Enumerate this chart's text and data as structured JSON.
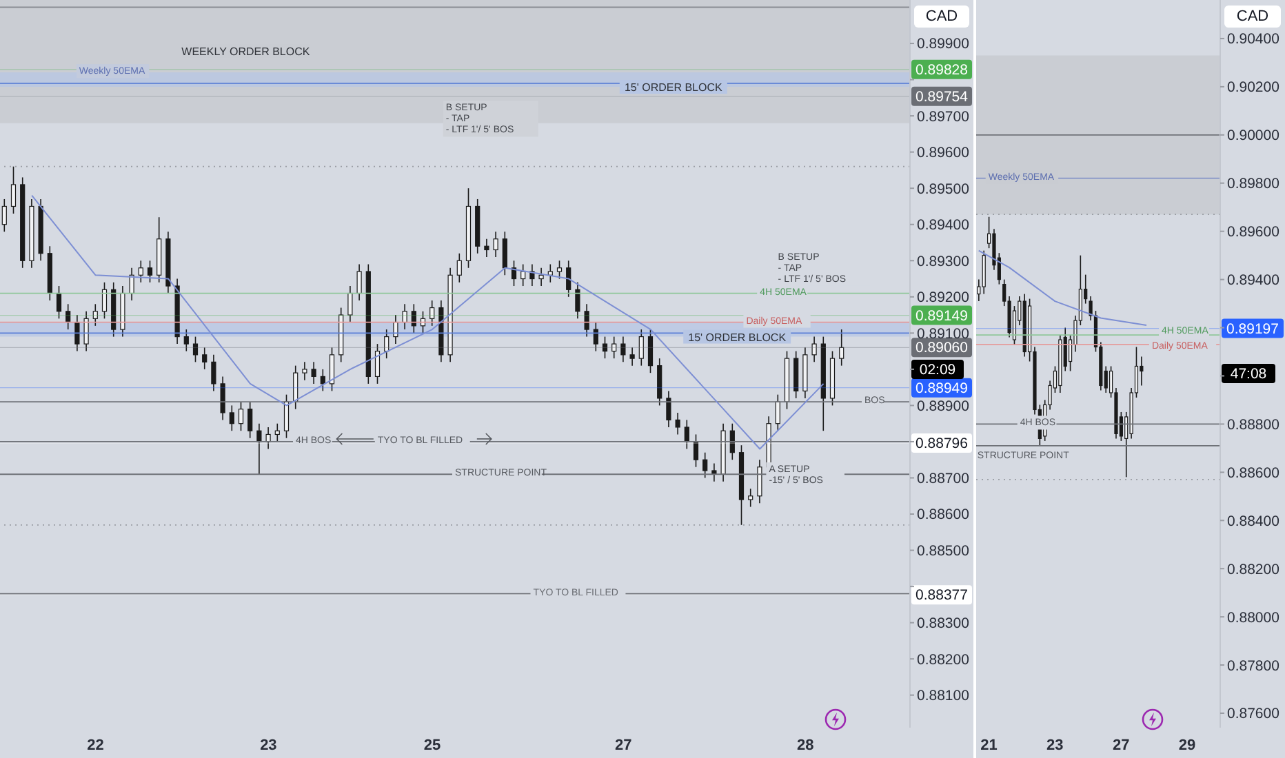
{
  "chart_data": [
    {
      "type": "candlestick",
      "color": "#1a1a1a",
      "ylabel": "CAD",
      "categories": [
        null,
        null,
        null,
        null,
        null,
        null,
        null,
        null,
        null,
        null,
        "22",
        null,
        null,
        null,
        null,
        null,
        null,
        null,
        null,
        null,
        null,
        null,
        null,
        null,
        null,
        null,
        null,
        null,
        null,
        "23",
        null,
        null,
        null,
        null,
        null,
        null,
        null,
        null,
        null,
        null,
        null,
        null,
        null,
        null,
        null,
        null,
        null,
        "25",
        null,
        null,
        null,
        null,
        null,
        null,
        null,
        null,
        null,
        null,
        null,
        null,
        null,
        null,
        null,
        null,
        null,
        null,
        null,
        null,
        "27",
        null,
        null,
        null,
        null,
        null,
        null,
        null,
        null,
        null,
        null,
        null,
        null,
        null,
        null,
        null,
        null,
        null,
        null,
        null,
        "28",
        null,
        null,
        null,
        null,
        null,
        null,
        null,
        null,
        null,
        null,
        null
      ],
      "ohlc": [
        [
          0.894,
          0.8947,
          0.8938,
          0.8945
        ],
        [
          0.8945,
          0.8956,
          0.8943,
          0.8951
        ],
        [
          0.8951,
          0.8953,
          0.8928,
          0.893
        ],
        [
          0.893,
          0.8947,
          0.8928,
          0.8945
        ],
        [
          0.8945,
          0.8947,
          0.893,
          0.8932
        ],
        [
          0.8932,
          0.8934,
          0.8919,
          0.8921
        ],
        [
          0.8921,
          0.8923,
          0.8914,
          0.8916
        ],
        [
          0.8916,
          0.8918,
          0.8911,
          0.8913
        ],
        [
          0.8913,
          0.8915,
          0.8905,
          0.8907
        ],
        [
          0.8907,
          0.8916,
          0.8905,
          0.8914
        ],
        [
          0.8914,
          0.8918,
          0.8912,
          0.8916
        ],
        [
          0.8916,
          0.8924,
          0.8914,
          0.8922
        ],
        [
          0.8922,
          0.8924,
          0.8909,
          0.8911
        ],
        [
          0.8911,
          0.8923,
          0.8909,
          0.8921
        ],
        [
          0.8921,
          0.8928,
          0.8919,
          0.8926
        ],
        [
          0.8926,
          0.893,
          0.8924,
          0.8928
        ],
        [
          0.8928,
          0.893,
          0.8924,
          0.8926
        ],
        [
          0.8926,
          0.8942,
          0.8924,
          0.8936
        ],
        [
          0.8936,
          0.8938,
          0.8921,
          0.8923
        ],
        [
          0.8923,
          0.8925,
          0.8907,
          0.8909
        ],
        [
          0.8909,
          0.8911,
          0.8905,
          0.8907
        ],
        [
          0.8907,
          0.8909,
          0.8902,
          0.8904
        ],
        [
          0.8904,
          0.8906,
          0.89,
          0.8902
        ],
        [
          0.8902,
          0.8904,
          0.8894,
          0.8896
        ],
        [
          0.8896,
          0.8898,
          0.8886,
          0.8888
        ],
        [
          0.8888,
          0.889,
          0.8883,
          0.8885
        ],
        [
          0.8885,
          0.8891,
          0.8883,
          0.8889
        ],
        [
          0.8889,
          0.8891,
          0.8881,
          0.8883
        ],
        [
          0.8883,
          0.8885,
          0.8871,
          0.888
        ],
        [
          0.888,
          0.8884,
          0.8878,
          0.8882
        ],
        [
          0.8882,
          0.8885,
          0.888,
          0.8883
        ],
        [
          0.8883,
          0.8893,
          0.8881,
          0.8891
        ],
        [
          0.8891,
          0.8901,
          0.8889,
          0.8899
        ],
        [
          0.8899,
          0.8902,
          0.8897,
          0.89
        ],
        [
          0.89,
          0.8902,
          0.8896,
          0.8898
        ],
        [
          0.8898,
          0.89,
          0.8894,
          0.8896
        ],
        [
          0.8896,
          0.8906,
          0.8894,
          0.8904
        ],
        [
          0.8904,
          0.8917,
          0.8902,
          0.8915
        ],
        [
          0.8915,
          0.8923,
          0.8913,
          0.8921
        ],
        [
          0.8921,
          0.8929,
          0.8919,
          0.8927
        ],
        [
          0.8927,
          0.8929,
          0.8896,
          0.8898
        ],
        [
          0.8898,
          0.8907,
          0.8896,
          0.8905
        ],
        [
          0.8905,
          0.8911,
          0.8903,
          0.8909
        ],
        [
          0.8909,
          0.8915,
          0.8907,
          0.8913
        ],
        [
          0.8913,
          0.8918,
          0.8911,
          0.8916
        ],
        [
          0.8916,
          0.8918,
          0.891,
          0.8912
        ],
        [
          0.8912,
          0.8916,
          0.891,
          0.8914
        ],
        [
          0.8914,
          0.8919,
          0.8912,
          0.8917
        ],
        [
          0.8917,
          0.8919,
          0.8902,
          0.8904
        ],
        [
          0.8904,
          0.8928,
          0.8902,
          0.8926
        ],
        [
          0.8926,
          0.8932,
          0.8924,
          0.893
        ],
        [
          0.893,
          0.895,
          0.8928,
          0.8945
        ],
        [
          0.8945,
          0.8947,
          0.8932,
          0.8934
        ],
        [
          0.8934,
          0.8936,
          0.8931,
          0.8933
        ],
        [
          0.8933,
          0.8938,
          0.8931,
          0.8936
        ],
        [
          0.8936,
          0.8938,
          0.8926,
          0.8928
        ],
        [
          0.8928,
          0.893,
          0.8923,
          0.8925
        ],
        [
          0.8925,
          0.8929,
          0.8923,
          0.8927
        ],
        [
          0.8927,
          0.8929,
          0.8923,
          0.8925
        ],
        [
          0.8925,
          0.8928,
          0.8923,
          0.8926
        ],
        [
          0.8926,
          0.8929,
          0.8924,
          0.8927
        ],
        [
          0.8927,
          0.893,
          0.8925,
          0.8928
        ],
        [
          0.8928,
          0.893,
          0.892,
          0.8922
        ],
        [
          0.8922,
          0.8924,
          0.8914,
          0.8916
        ],
        [
          0.8916,
          0.8918,
          0.8909,
          0.8911
        ],
        [
          0.8911,
          0.8913,
          0.8905,
          0.8907
        ],
        [
          0.8907,
          0.8909,
          0.8903,
          0.8905
        ],
        [
          0.8905,
          0.8909,
          0.8903,
          0.8907
        ],
        [
          0.8907,
          0.8909,
          0.8902,
          0.8904
        ],
        [
          0.8904,
          0.8906,
          0.8901,
          0.8903
        ],
        [
          0.8903,
          0.8911,
          0.8901,
          0.8909
        ],
        [
          0.8909,
          0.8911,
          0.8899,
          0.8901
        ],
        [
          0.8901,
          0.8903,
          0.889,
          0.8892
        ],
        [
          0.8892,
          0.8894,
          0.8884,
          0.8886
        ],
        [
          0.8886,
          0.8888,
          0.8882,
          0.8884
        ],
        [
          0.8884,
          0.8886,
          0.8878,
          0.888
        ],
        [
          0.888,
          0.8882,
          0.8873,
          0.8875
        ],
        [
          0.8875,
          0.8877,
          0.887,
          0.8872
        ],
        [
          0.8872,
          0.8874,
          0.8869,
          0.8871
        ],
        [
          0.8871,
          0.8885,
          0.8869,
          0.8883
        ],
        [
          0.8883,
          0.8885,
          0.8875,
          0.8877
        ],
        [
          0.8877,
          0.8879,
          0.8857,
          0.8864
        ],
        [
          0.8864,
          0.8867,
          0.8862,
          0.8865
        ],
        [
          0.8865,
          0.8875,
          0.8863,
          0.8873
        ],
        [
          0.8873,
          0.8887,
          0.8871,
          0.8885
        ],
        [
          0.8885,
          0.8893,
          0.8883,
          0.8891
        ],
        [
          0.8891,
          0.8905,
          0.8889,
          0.8903
        ],
        [
          0.8903,
          0.8905,
          0.8892,
          0.8894
        ],
        [
          0.8894,
          0.8906,
          0.8892,
          0.8904
        ],
        [
          0.8904,
          0.8909,
          0.8902,
          0.8907
        ],
        [
          0.8907,
          0.8909,
          0.8883,
          0.8892
        ],
        [
          0.8892,
          0.8905,
          0.889,
          0.8903
        ],
        [
          0.8903,
          0.8911,
          0.8901,
          0.8906
        ],
        null,
        null,
        null,
        null,
        null,
        null,
        null
      ],
      "series": [
        {
          "type": "line",
          "color": "#7d8fd4",
          "values": [
            null,
            null,
            null,
            0.8948,
            null,
            null,
            null,
            null,
            null,
            null,
            0.8926,
            null,
            null,
            null,
            null,
            null,
            null,
            null,
            0.8925,
            null,
            null,
            null,
            null,
            null,
            null,
            null,
            null,
            0.8896,
            null,
            null,
            null,
            0.889,
            null,
            null,
            null,
            null,
            null,
            null,
            0.89,
            null,
            null,
            null,
            null,
            null,
            null,
            null,
            null,
            0.8911,
            null,
            null,
            null,
            null,
            null,
            null,
            null,
            0.8928,
            null,
            null,
            null,
            null,
            null,
            null,
            0.8925,
            null,
            null,
            null,
            null,
            null,
            null,
            null,
            null,
            0.8911,
            null,
            null,
            null,
            null,
            null,
            null,
            null,
            null,
            null,
            null,
            null,
            0.8878,
            null,
            null,
            null,
            null,
            null,
            null,
            0.8896,
            null,
            null,
            null,
            null,
            null,
            null,
            null,
            null,
            null
          ]
        }
      ],
      "ylim": [
        0.8801,
        0.9002
      ],
      "yticks": [
        {
          "value": 0.881,
          "label": "0.88100"
        },
        {
          "value": 0.882,
          "label": "0.88200"
        },
        {
          "value": 0.883,
          "label": "0.88300"
        },
        {
          "value": 0.884,
          "label": null
        },
        {
          "value": 0.885,
          "label": "0.88500"
        },
        {
          "value": 0.886,
          "label": "0.88600"
        },
        {
          "value": 0.887,
          "label": "0.88700"
        },
        {
          "value": 0.888,
          "label": null
        },
        {
          "value": 0.889,
          "label": "0.88900"
        },
        {
          "value": 0.89,
          "label": null
        },
        {
          "value": 0.891,
          "label": "0.89100"
        },
        {
          "value": 0.892,
          "label": "0.89200"
        },
        {
          "value": 0.893,
          "label": "0.89300"
        },
        {
          "value": 0.894,
          "label": "0.89400"
        },
        {
          "value": 0.895,
          "label": "0.89500"
        },
        {
          "value": 0.896,
          "label": "0.89600"
        },
        {
          "value": 0.897,
          "label": "0.89700"
        },
        {
          "value": 0.898,
          "label": null
        },
        {
          "value": 0.899,
          "label": "0.89900"
        }
      ],
      "bands": [
        {
          "axis": "y",
          "from": 0.8968,
          "to": 0.9002,
          "label": "WEEKLY ORDER BLOCK",
          "color": "#c5c8ce"
        },
        {
          "axis": "y",
          "from": 0.8978,
          "to": 0.8982,
          "label": "15' ORDER BLOCK",
          "color": "#b7c6e4"
        },
        {
          "axis": "y",
          "from": 0.8909,
          "to": 0.8913,
          "label": "15' ORDER BLOCK",
          "color": "#b7c6e4"
        }
      ],
      "ref_lines": [
        {
          "axis": "y",
          "value": 0.9,
          "color": "#8a8d94",
          "line_style": "solid"
        },
        {
          "axis": "y",
          "value": 0.8979,
          "color": "#5b7fd6",
          "line_style": "solid"
        },
        {
          "axis": "y",
          "value": 0.8956,
          "color": "#9a9da4",
          "line_style": "dotted"
        },
        {
          "axis": "y",
          "value": 0.8921,
          "color": "#8fc79a",
          "line_style": "solid"
        },
        {
          "axis": "y",
          "value": 0.8913,
          "color": "#e59a9a",
          "line_style": "solid"
        },
        {
          "axis": "y",
          "value": 0.891,
          "color": "#5b7fd6",
          "line_style": "solid"
        },
        {
          "axis": "y",
          "value": 0.8891,
          "color": "#6f7278",
          "line_style": "solid"
        },
        {
          "axis": "y",
          "value": 0.888,
          "color": "#6f7278",
          "line_style": "solid"
        },
        {
          "axis": "y",
          "value": 0.8871,
          "color": "#6f7278",
          "line_style": "solid"
        },
        {
          "axis": "y",
          "value": 0.8857,
          "color": "#9a9da4",
          "line_style": "dotted"
        },
        {
          "axis": "y",
          "value": 0.8838,
          "color": "#6f7278",
          "line_style": "solid"
        },
        {
          "axis": "y",
          "value": 0.89828,
          "label": "0.89828",
          "color": "#4caf50"
        },
        {
          "axis": "y",
          "value": 0.89754,
          "label": "0.89754",
          "color": "#6b6e75"
        },
        {
          "axis": "y",
          "value": 0.89149,
          "label": "0.89149",
          "color": "#4caf50"
        },
        {
          "axis": "y",
          "value": 0.8906,
          "label": "0.89060",
          "color": "#6b6e75"
        },
        {
          "axis": "y",
          "value": 0.88949,
          "label": "0.88949",
          "color": "#2962ff"
        },
        {
          "axis": "y",
          "value": 0.88796,
          "label": "0.88796",
          "color": "#ffffff"
        },
        {
          "axis": "y",
          "value": 0.88377,
          "label": "0.88377",
          "color": "#ffffff"
        }
      ],
      "annotations": [
        "B SETUP\n- TAP\n- LTF 1'/ 5' BOS",
        "B SETUP\n- TAP\n- LTF 1'/ 5' BOS",
        {
          "text": "Weekly 50EMA",
          "y": 0.8982
        },
        {
          "text": "4H 50EMA",
          "y": 0.8921
        },
        {
          "text": "Daily 50EMA",
          "y": 0.8913
        },
        {
          "text": "4H BOS",
          "y": 0.888
        },
        {
          "text": "TYO TO BL FILLED",
          "y": 0.888
        },
        {
          "text": "STRUCTURE POINT",
          "y": 0.8871
        },
        {
          "text": "A SETUP\n-15' / 5' BOS",
          "y": 0.8872
        },
        {
          "text": "BOS",
          "y": 0.8891
        },
        {
          "text": "TYO TO BL FILLED",
          "y": 0.8838
        },
        {
          "text": "02:09",
          "y": 0.89
        }
      ]
    },
    {
      "type": "candlestick",
      "color": "#1a1a1a",
      "ylabel": "CAD",
      "categories": [
        null,
        null,
        "21",
        null,
        null,
        null,
        null,
        null,
        null,
        null,
        null,
        null,
        null,
        null,
        null,
        "23",
        null,
        null,
        null,
        null,
        null,
        null,
        null,
        null,
        null,
        null,
        null,
        null,
        "27",
        null,
        null,
        null,
        null,
        null,
        null,
        null,
        null,
        null,
        null,
        null,
        null,
        "29",
        null,
        null,
        null,
        null,
        null,
        null
      ],
      "ohlc": [
        [
          0.8934,
          0.894,
          0.8931,
          0.8937
        ],
        [
          0.8937,
          0.8952,
          0.8934,
          0.895
        ],
        [
          0.8955,
          0.8966,
          0.8953,
          0.8959
        ],
        [
          0.8959,
          0.8961,
          0.8944,
          0.8946
        ],
        [
          0.8949,
          0.8951,
          0.8938,
          0.894
        ],
        [
          0.8938,
          0.894,
          0.8929,
          0.8931
        ],
        [
          0.8931,
          0.8933,
          0.8916,
          0.8918
        ],
        [
          0.8915,
          0.8929,
          0.8913,
          0.8927
        ],
        [
          0.8923,
          0.8933,
          0.8921,
          0.8931
        ],
        [
          0.8931,
          0.8934,
          0.8908,
          0.891
        ],
        [
          0.891,
          0.8932,
          0.8906,
          0.8929
        ],
        [
          0.891,
          0.8912,
          0.8884,
          0.8886
        ],
        [
          0.8886,
          0.8888,
          0.8871,
          0.8874
        ],
        [
          0.8875,
          0.889,
          0.8873,
          0.8888
        ],
        [
          0.8888,
          0.8898,
          0.8886,
          0.8896
        ],
        [
          0.8895,
          0.8904,
          0.8893,
          0.8902
        ],
        [
          0.8896,
          0.8917,
          0.8893,
          0.8915
        ],
        [
          0.8916,
          0.892,
          0.8902,
          0.8904
        ],
        [
          0.8906,
          0.8917,
          0.8902,
          0.8915
        ],
        [
          0.8913,
          0.8925,
          0.891,
          0.8923
        ],
        [
          0.8923,
          0.895,
          0.8921,
          0.8936
        ],
        [
          0.8936,
          0.8942,
          0.893,
          0.8932
        ],
        [
          0.8931,
          0.8933,
          0.8923,
          0.8925
        ],
        [
          0.8925,
          0.8927,
          0.891,
          0.8912
        ],
        [
          0.8912,
          0.8914,
          0.8894,
          0.8896
        ],
        [
          0.8902,
          0.8904,
          0.8893,
          0.8895
        ],
        [
          0.8893,
          0.8904,
          0.8891,
          0.8902
        ],
        [
          0.8893,
          0.8895,
          0.8874,
          0.8876
        ],
        [
          0.8883,
          0.8885,
          0.8873,
          0.8875
        ],
        [
          0.8874,
          0.8885,
          0.8858,
          0.8883
        ],
        [
          0.8876,
          0.8895,
          0.8874,
          0.8893
        ],
        [
          0.8893,
          0.8912,
          0.8891,
          0.8904
        ],
        [
          0.8904,
          0.8908,
          0.8896,
          0.8902
        ],
        null,
        null,
        null,
        null,
        null,
        null,
        null,
        null,
        null,
        null,
        null,
        null,
        null,
        null,
        null
      ],
      "series": [
        {
          "type": "line",
          "color": "#7d8fd4",
          "values": [
            0.8952,
            null,
            null,
            null,
            null,
            null,
            0.8945,
            null,
            null,
            null,
            null,
            null,
            null,
            null,
            null,
            0.8931,
            null,
            null,
            null,
            null,
            null,
            null,
            null,
            null,
            0.8924,
            null,
            null,
            null,
            null,
            null,
            null,
            null,
            null,
            0.8921,
            null,
            null,
            null,
            null,
            null,
            null,
            null,
            null,
            null,
            null,
            null,
            null,
            null,
            null
          ]
        }
      ],
      "ylim": [
        0.8754,
        0.9056
      ],
      "yticks": [
        {
          "value": 0.876,
          "label": "0.87600"
        },
        {
          "value": 0.878,
          "label": "0.87800"
        },
        {
          "value": 0.88,
          "label": "0.88000"
        },
        {
          "value": 0.882,
          "label": "0.88200"
        },
        {
          "value": 0.884,
          "label": "0.88400"
        },
        {
          "value": 0.886,
          "label": "0.88600"
        },
        {
          "value": 0.888,
          "label": "0.88800"
        },
        {
          "value": 0.89,
          "label": null
        },
        {
          "value": 0.892,
          "label": null
        },
        {
          "value": 0.894,
          "label": "0.89400"
        },
        {
          "value": 0.896,
          "label": "0.89600"
        },
        {
          "value": 0.898,
          "label": "0.89800"
        },
        {
          "value": 0.9,
          "label": "0.90000"
        },
        {
          "value": 0.902,
          "label": "0.90200"
        },
        {
          "value": 0.904,
          "label": "0.90400"
        }
      ],
      "bands": [
        {
          "axis": "y",
          "from": 0.8967,
          "to": 0.9033,
          "color": "#c5c8ce"
        }
      ],
      "ref_lines": [
        {
          "axis": "y",
          "value": 0.9,
          "color": "#6f7278",
          "line_style": "solid"
        },
        {
          "axis": "y",
          "value": 0.8982,
          "color": "#8e9bc9",
          "line_style": "solid"
        },
        {
          "axis": "y",
          "value": 0.8967,
          "color": "#9a9da4",
          "line_style": "dotted"
        },
        {
          "axis": "y",
          "value": 0.8917,
          "color": "#8fc79a",
          "line_style": "solid"
        },
        {
          "axis": "y",
          "value": 0.8913,
          "color": "#e59a9a",
          "line_style": "solid"
        },
        {
          "axis": "y",
          "value": 0.888,
          "color": "#6f7278",
          "line_style": "solid"
        },
        {
          "axis": "y",
          "value": 0.8871,
          "color": "#6f7278",
          "line_style": "solid"
        },
        {
          "axis": "y",
          "value": 0.8857,
          "color": "#9a9da4",
          "line_style": "dotted"
        },
        {
          "axis": "y",
          "value": 0.89197,
          "label": "0.89197",
          "color": "#2962ff"
        }
      ],
      "annotations": [
        {
          "text": "Weekly 50EMA",
          "y": 0.8982
        },
        {
          "text": "4H 50EMA",
          "y": 0.8917
        },
        {
          "text": "Daily 50EMA",
          "y": 0.8913
        },
        {
          "text": "4H BOS",
          "y": 0.888
        },
        {
          "text": "STRUCTURE POINT",
          "y": 0.8871
        },
        {
          "text": "47:08",
          "y": 0.8901
        }
      ]
    }
  ]
}
